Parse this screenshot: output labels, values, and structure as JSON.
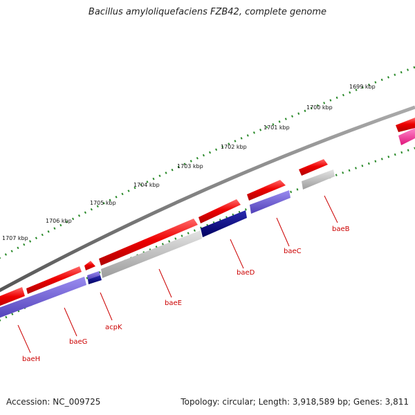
{
  "title": "Bacillus amyloliquefaciens FZB42, complete genome",
  "accession": "Accession: NC_009725",
  "topology": "Topology: circular; Length: 3,918,589 bp; Genes: 3,811",
  "ticks": [
    "1699 kbp",
    "1700 kbp",
    "1701 kbp",
    "1702 kbp",
    "1703 kbp",
    "1704 kbp",
    "1705 kbp",
    "1706 kbp",
    "1707 kbp"
  ],
  "genes": [
    "baeB",
    "baeC",
    "baeD",
    "baeE",
    "acpK",
    "baeG",
    "baeH"
  ],
  "colors": {
    "backbone": "#777777",
    "forward_cds": "#ee0000",
    "pink_cds": "#ff3399",
    "gray_feature": "#b8b8b8",
    "navy_feature": "#0a0a80",
    "slate_feature": "#6a5acd",
    "label": "#cc0000",
    "ticks": "#2a8a2a"
  }
}
